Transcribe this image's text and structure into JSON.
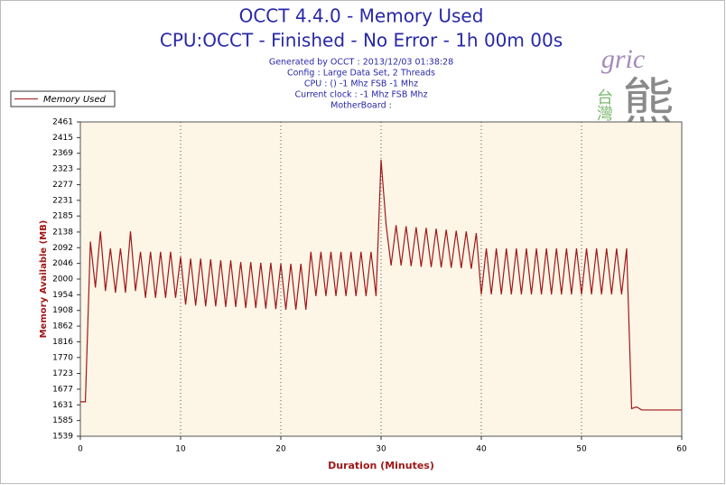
{
  "chart_data": {
    "type": "line",
    "title": "OCCT 4.4.0 - Memory Used",
    "subtitle": "CPU:OCCT - Finished - No Error - 1h 00m 00s",
    "info": [
      "Generated by OCCT : 2013/12/03 01:38:28",
      "Config : Large Data Set, 2 Threads",
      "CPU :  () -1 Mhz FSB -1 Mhz",
      "Current clock : -1 Mhz FSB  Mhz",
      "MotherBoard :"
    ],
    "x_label": "Duration (Minutes)",
    "y_label": "Memory Available (MB)",
    "watermark": {
      "latin": "gric",
      "cjk_small": "台灣",
      "cjk_large": "熊"
    },
    "x": [
      0,
      0.5,
      1,
      1.5,
      2,
      2.5,
      3,
      3.5,
      4,
      4.5,
      5,
      5.5,
      6,
      6.5,
      7,
      7.5,
      8,
      8.5,
      9,
      9.5,
      10,
      10.5,
      11,
      11.5,
      12,
      12.5,
      13,
      13.5,
      14,
      14.5,
      15,
      15.5,
      16,
      16.5,
      17,
      17.5,
      18,
      18.5,
      19,
      19.5,
      20,
      20.5,
      21,
      21.5,
      22,
      22.5,
      23,
      23.5,
      24,
      24.5,
      25,
      25.5,
      26,
      26.5,
      27,
      27.5,
      28,
      28.5,
      29,
      29.5,
      30,
      30.5,
      31,
      31.5,
      32,
      32.5,
      33,
      33.5,
      34,
      34.5,
      35,
      35.5,
      36,
      36.5,
      37,
      37.5,
      38,
      38.5,
      39,
      39.5,
      40,
      40.5,
      41,
      41.5,
      42,
      42.5,
      43,
      43.5,
      44,
      44.5,
      45,
      45.5,
      46,
      46.5,
      47,
      47.5,
      48,
      48.5,
      49,
      49.5,
      50,
      50.5,
      51,
      51.5,
      52,
      52.5,
      53,
      53.5,
      54,
      54.5,
      55,
      55.5,
      56,
      56.5,
      57,
      57.5,
      58,
      58.5,
      59,
      59.5,
      60
    ],
    "series": [
      {
        "name": "Memory Used",
        "color": "#a01818",
        "values": [
          1640,
          1640,
          2110,
          1975,
          2140,
          1965,
          2090,
          1960,
          2090,
          1960,
          2140,
          1965,
          2080,
          1945,
          2080,
          1945,
          2080,
          1945,
          2080,
          1945,
          2065,
          1925,
          2060,
          1922,
          2060,
          1920,
          2058,
          1920,
          2055,
          1918,
          2055,
          1918,
          2050,
          1915,
          2050,
          1915,
          2048,
          1913,
          2048,
          1912,
          2045,
          1910,
          2045,
          1910,
          2045,
          1910,
          2080,
          1950,
          2080,
          1950,
          2080,
          1950,
          2080,
          1950,
          2080,
          1950,
          2080,
          1950,
          2080,
          1950,
          2350,
          2160,
          2040,
          2158,
          2040,
          2155,
          2038,
          2152,
          2036,
          2150,
          2035,
          2148,
          2034,
          2145,
          2033,
          2142,
          2032,
          2140,
          2030,
          2135,
          1955,
          2090,
          1955,
          2090,
          1955,
          2090,
          1955,
          2090,
          1955,
          2090,
          1955,
          2090,
          1955,
          2090,
          1955,
          2090,
          1955,
          2090,
          1955,
          2090,
          1955,
          2090,
          1955,
          2090,
          1955,
          2090,
          1955,
          2090,
          1955,
          2090,
          1620,
          1625,
          1616,
          1616,
          1616,
          1616,
          1616,
          1616,
          1616,
          1616,
          1616
        ]
      }
    ],
    "xlim": [
      0,
      60
    ],
    "xticks": [
      0,
      10,
      20,
      30,
      40,
      50,
      60
    ],
    "ylim": [
      1539,
      2461
    ],
    "yticks": [
      1539,
      1585,
      1631,
      1677,
      1723,
      1770,
      1816,
      1862,
      1908,
      1954,
      2000,
      2046,
      2092,
      2138,
      2185,
      2231,
      2277,
      2323,
      2369,
      2415,
      2461
    ],
    "grid": true,
    "legend": "top-left",
    "background": "#fdf5e6"
  }
}
